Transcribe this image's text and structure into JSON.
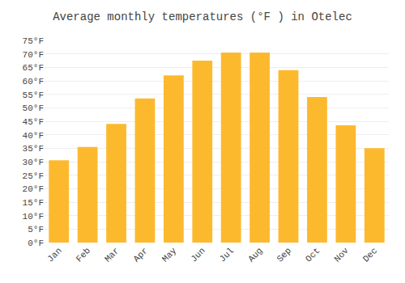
{
  "chart_data": {
    "type": "bar",
    "title": "Average monthly temperatures (°F ) in Otelec",
    "categories": [
      "Jan",
      "Feb",
      "Mar",
      "Apr",
      "May",
      "Jun",
      "Jul",
      "Aug",
      "Sep",
      "Oct",
      "Nov",
      "Dec"
    ],
    "values": [
      30.5,
      35.5,
      44,
      53.5,
      62,
      67.5,
      70.5,
      70.5,
      64,
      54,
      43.5,
      35
    ],
    "color": "#FDB92E",
    "ylim": [
      0,
      75
    ],
    "yticks": [
      {
        "value": 0,
        "label": "0°F"
      },
      {
        "value": 5,
        "label": "5°F"
      },
      {
        "value": 10,
        "label": "10°F"
      },
      {
        "value": 15,
        "label": "15°F"
      },
      {
        "value": 20,
        "label": "20°F"
      },
      {
        "value": 25,
        "label": "25°F"
      },
      {
        "value": 30,
        "label": "30°F"
      },
      {
        "value": 35,
        "label": "35°F"
      },
      {
        "value": 40,
        "label": "40°F"
      },
      {
        "value": 45,
        "label": "45°F"
      },
      {
        "value": 50,
        "label": "50°F"
      },
      {
        "value": 55,
        "label": "55°F"
      },
      {
        "value": 60,
        "label": "60°F"
      },
      {
        "value": 65,
        "label": "65°F"
      },
      {
        "value": 70,
        "label": "70°F"
      },
      {
        "value": 75,
        "label": "75°F"
      }
    ],
    "grid": true
  }
}
